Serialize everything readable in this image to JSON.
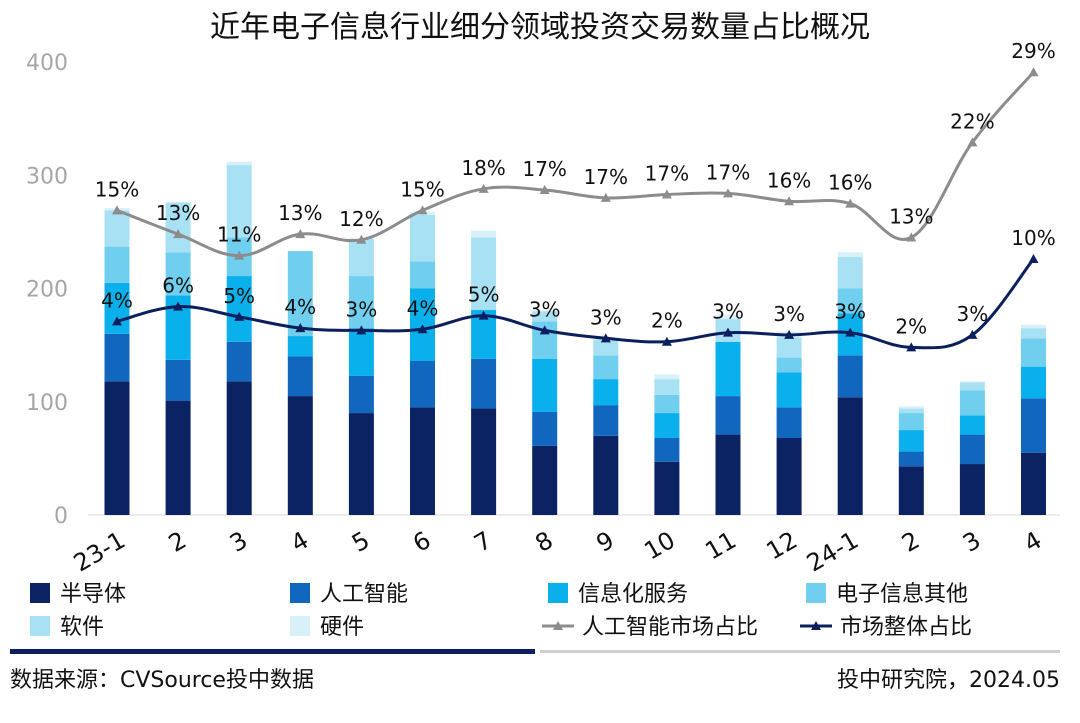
{
  "chart_data": {
    "type": "bar",
    "subtype": "stacked-bar-with-lines",
    "title": "近年电子信息行业细分领域投资交易数量占比概况",
    "categories": [
      "23-1",
      "2",
      "3",
      "4",
      "5",
      "6",
      "7",
      "8",
      "9",
      "10",
      "11",
      "12",
      "24-1",
      "2",
      "3",
      "4"
    ],
    "ylim": [
      0,
      400
    ],
    "yticks": [
      0,
      100,
      200,
      300,
      400
    ],
    "grid": false,
    "legend_position": "bottom",
    "series": [
      {
        "name": "半导体",
        "color": "#0b2263",
        "values": [
          118,
          101,
          118,
          105,
          90,
          95,
          94,
          61,
          70,
          47,
          71,
          68,
          104,
          43,
          45,
          55
        ]
      },
      {
        "name": "人工智能",
        "color": "#1167be",
        "values": [
          42,
          36,
          35,
          35,
          33,
          41,
          44,
          30,
          27,
          21,
          34,
          27,
          37,
          13,
          26,
          48
        ]
      },
      {
        "name": "信息化服务",
        "color": "#0ab0ec",
        "values": [
          45,
          57,
          58,
          18,
          42,
          64,
          43,
          47,
          23,
          22,
          48,
          31,
          37,
          19,
          17,
          28
        ]
      },
      {
        "name": "电子信息其他",
        "color": "#70cfee",
        "values": [
          32,
          38,
          34,
          75,
          46,
          24,
          0,
          33,
          21,
          16,
          0,
          13,
          22,
          15,
          22,
          25
        ]
      },
      {
        "name": "软件",
        "color": "#a9e1f4",
        "values": [
          32,
          44,
          64,
          0,
          33,
          41,
          64,
          9,
          14,
          14,
          20,
          18,
          28,
          4,
          7,
          9
        ]
      },
      {
        "name": "硬件",
        "color": "#d8f0f8",
        "values": [
          2,
          0,
          3,
          0,
          0,
          3,
          6,
          0,
          0,
          4,
          4,
          5,
          4,
          2,
          1,
          3
        ]
      }
    ],
    "lines": [
      {
        "name": "人工智能市场占比",
        "color": "#8c8c8c",
        "values": [
          15,
          13,
          11,
          13,
          12,
          15,
          18,
          17,
          17,
          17,
          17,
          16,
          16,
          13,
          22,
          29
        ],
        "labels": [
          "15%",
          "13%",
          "11%",
          "13%",
          "12%",
          "15%",
          "18%",
          "17%",
          "17%",
          "17%",
          "17%",
          "16%",
          "16%",
          "13%",
          "22%",
          "29%"
        ],
        "plot_values": [
          269,
          248,
          229,
          248,
          243,
          269,
          288,
          287,
          280,
          283,
          284,
          277,
          275,
          245,
          329,
          391
        ]
      },
      {
        "name": "市场整体占比",
        "color": "#0b1f5e",
        "values": [
          4,
          6,
          5,
          4,
          3,
          4,
          5,
          3,
          3,
          2,
          3,
          3,
          3,
          2,
          3,
          10
        ],
        "labels": [
          "4%",
          "6%",
          "5%",
          "4%",
          "3%",
          "4%",
          "5%",
          "3%",
          "3%",
          "2%",
          "3%",
          "3%",
          "3%",
          "2%",
          "3%",
          "10%"
        ],
        "plot_values": [
          171,
          184,
          175,
          165,
          163,
          164,
          176,
          163,
          156,
          153,
          161,
          159,
          161,
          148,
          159,
          226
        ]
      }
    ]
  },
  "footer": {
    "source": "数据来源：CVSource投中数据",
    "credit": "投中研究院，2024.05"
  }
}
